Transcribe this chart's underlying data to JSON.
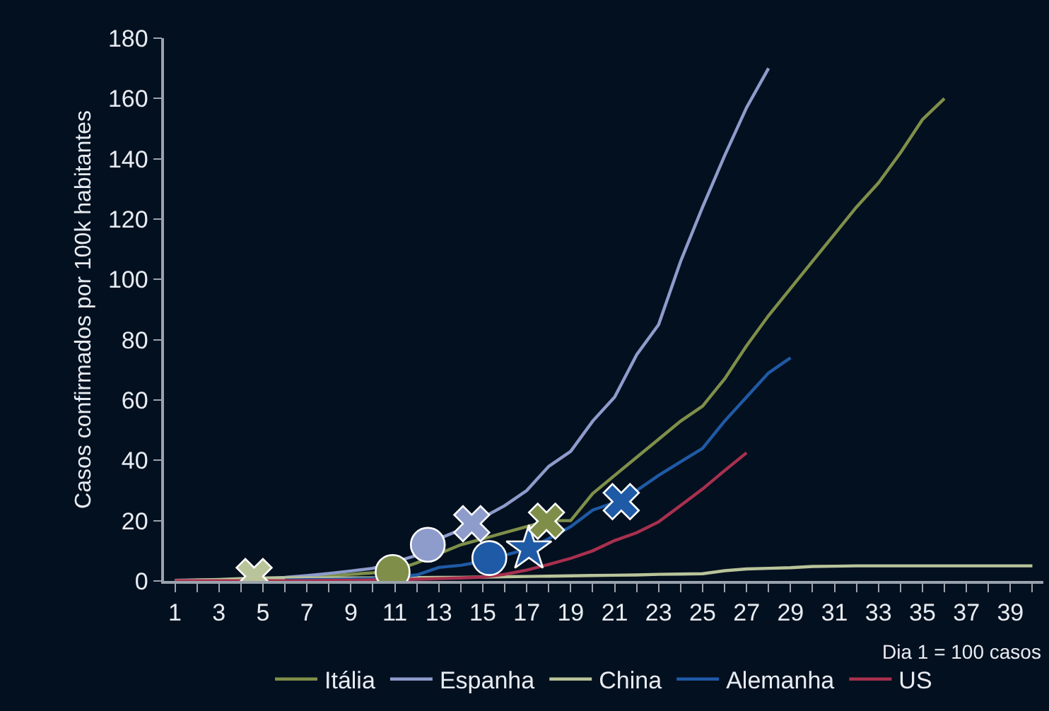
{
  "chart_data": {
    "type": "line",
    "ylabel": "Casos confirmados por 100k habitantes",
    "annotations": [
      "Dia 1 = 100 casos"
    ],
    "xlim": [
      0.5,
      40.5
    ],
    "xticks": [
      1,
      {
        "value": 2,
        "label": null
      },
      3,
      {
        "value": 4,
        "label": null
      },
      5,
      {
        "value": 6,
        "label": null
      },
      7,
      {
        "value": 8,
        "label": null
      },
      9,
      {
        "value": 10,
        "label": null
      },
      11,
      {
        "value": 12,
        "label": null
      },
      13,
      {
        "value": 14,
        "label": null
      },
      15,
      {
        "value": 16,
        "label": null
      },
      17,
      {
        "value": 18,
        "label": null
      },
      19,
      {
        "value": 20,
        "label": null
      },
      21,
      {
        "value": 22,
        "label": null
      },
      23,
      {
        "value": 24,
        "label": null
      },
      25,
      {
        "value": 26,
        "label": null
      },
      27,
      {
        "value": 28,
        "label": null
      },
      29,
      {
        "value": 30,
        "label": null
      },
      31,
      {
        "value": 32,
        "label": null
      },
      33,
      {
        "value": 34,
        "label": null
      },
      35,
      {
        "value": 36,
        "label": null
      },
      37,
      {
        "value": 38,
        "label": null
      },
      39,
      {
        "value": 40,
        "label": null
      }
    ],
    "ylim": [
      0,
      180
    ],
    "yticks": [
      0,
      20,
      40,
      60,
      80,
      100,
      120,
      140,
      160,
      180
    ],
    "grid": false,
    "legend": "bottom",
    "marker": "none",
    "series": [
      {
        "name": "Itália",
        "color": "#7f8f4a",
        "x": [
          1,
          2,
          3,
          4,
          5,
          6,
          7,
          8,
          9,
          10,
          11,
          12,
          13,
          14,
          15,
          16,
          17,
          18,
          19,
          20,
          21,
          22,
          23,
          24,
          25,
          26,
          27,
          28,
          29,
          30,
          31,
          32,
          33,
          34,
          35,
          36
        ],
        "values": [
          0.1,
          0.2,
          0.3,
          0.4,
          0.6,
          0.9,
          1.3,
          1.7,
          2.2,
          2.7,
          3.5,
          6,
          null,
          12,
          14,
          16,
          18,
          20,
          20,
          29,
          35,
          41,
          47,
          53,
          58,
          67,
          78,
          88,
          97,
          106,
          115,
          124,
          132,
          142,
          153,
          160
        ]
      },
      {
        "name": "Espanha",
        "color": "#8e9ccc",
        "x": [
          1,
          2,
          3,
          4,
          5,
          6,
          7,
          8,
          9,
          10,
          11,
          12,
          13,
          14,
          15,
          16,
          17,
          18,
          19,
          20,
          21,
          22,
          23,
          24,
          25,
          26,
          27,
          28
        ],
        "values": [
          0.2,
          0.3,
          0.4,
          0.5,
          0.8,
          1.2,
          1.8,
          2.5,
          3.3,
          4.2,
          null,
          8.5,
          14,
          17,
          21,
          25,
          30,
          38,
          43,
          53,
          61,
          75,
          85,
          106,
          124,
          141,
          157,
          170
        ]
      },
      {
        "name": "China",
        "color": "#b9c49a",
        "x": [
          1,
          2,
          3,
          4,
          5,
          6,
          7,
          8,
          9,
          10,
          11,
          12,
          13,
          14,
          15,
          16,
          17,
          18,
          19,
          20,
          21,
          22,
          23,
          24,
          25,
          26,
          27,
          28,
          29,
          30,
          31,
          32,
          33,
          34,
          35,
          36,
          37,
          38,
          39,
          40
        ],
        "values": [
          0.1,
          0.3,
          0.5,
          0.8,
          1.0,
          1.0,
          1.0,
          1.0,
          1.0,
          1.0,
          1.1,
          1.1,
          1.2,
          1.2,
          1.3,
          1.4,
          1.5,
          1.6,
          1.7,
          1.8,
          1.9,
          2.0,
          2.2,
          2.3,
          2.4,
          3.4,
          4.0,
          4.2,
          4.4,
          4.8,
          4.9,
          5.0,
          5.0,
          5.0,
          5.0,
          5.0,
          5.0,
          5.0,
          5.0,
          5.0
        ]
      },
      {
        "name": "Alemanha",
        "color": "#1f5aa6",
        "x": [
          6,
          7,
          8,
          9,
          10,
          11,
          12,
          13,
          14,
          15,
          16,
          17,
          18,
          19,
          20,
          21,
          22,
          23,
          24,
          25,
          26,
          27,
          28,
          29
        ],
        "values": [
          0.3,
          0.4,
          0.5,
          0.6,
          0.8,
          null,
          2,
          4.5,
          5.2,
          6.5,
          8.5,
          10.5,
          14,
          18,
          23.5,
          26,
          30,
          35,
          39.5,
          44,
          53,
          61,
          69,
          74
        ]
      },
      {
        "name": "US",
        "color": "#a8304f",
        "x": [
          1,
          2,
          3,
          4,
          5,
          6,
          7,
          8,
          9,
          10,
          11,
          12,
          13,
          14,
          15,
          16,
          17,
          18,
          19,
          20,
          21,
          22,
          23,
          24,
          25,
          26,
          27
        ],
        "values": [
          0.1,
          0.1,
          0.1,
          0.1,
          null,
          0.1,
          0.1,
          0.2,
          0.2,
          0.3,
          null,
          0.6,
          0.8,
          1.0,
          1.3,
          2.2,
          3.6,
          5.5,
          7.5,
          10,
          13.4,
          16,
          19.6,
          25,
          30.5,
          36.6,
          42.5
        ]
      },
      {
        "type": "scatter",
        "marker": "cross",
        "color": "#b9c49a",
        "x": [
          4.6
        ],
        "values": [
          1.5
        ]
      },
      {
        "type": "scatter",
        "marker": "circle",
        "color": "#7f8f4a",
        "x": [
          10.9
        ],
        "values": [
          3
        ]
      },
      {
        "type": "scatter",
        "marker": "circle",
        "color": "#8e9ccc",
        "x": [
          12.5
        ],
        "values": [
          12
        ]
      },
      {
        "type": "scatter",
        "marker": "cross",
        "color": "#8e9ccc",
        "x": [
          14.5
        ],
        "values": [
          19
        ]
      },
      {
        "type": "scatter",
        "marker": "circle",
        "color": "#1f5aa6",
        "x": [
          15.3
        ],
        "values": [
          7.6
        ]
      },
      {
        "type": "scatter",
        "marker": "star",
        "color": "#1f5aa6",
        "x": [
          17.1
        ],
        "values": [
          10.7
        ]
      },
      {
        "type": "scatter",
        "marker": "cross",
        "color": "#7f8f4a",
        "x": [
          17.9
        ],
        "values": [
          19.8
        ]
      },
      {
        "type": "scatter",
        "marker": "cross",
        "color": "#1f5aa6",
        "x": [
          21.3
        ],
        "values": [
          26.3
        ]
      }
    ]
  }
}
